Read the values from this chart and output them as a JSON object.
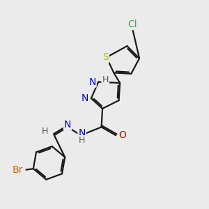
{
  "background_color": "#ebebeb",
  "bond_color": "#1a1a1a",
  "atoms": {
    "Cl": {
      "color": "#3cb03c",
      "fontsize": 10
    },
    "S": {
      "color": "#b8b800",
      "fontsize": 10
    },
    "N": {
      "color": "#0000cc",
      "fontsize": 10
    },
    "O": {
      "color": "#cc0000",
      "fontsize": 10
    },
    "Br": {
      "color": "#cc6600",
      "fontsize": 10
    },
    "H": {
      "color": "#555555",
      "fontsize": 9
    },
    "C": {
      "color": "#1a1a1a",
      "fontsize": 10
    }
  },
  "fig_width": 3.0,
  "fig_height": 3.0,
  "dpi": 100,
  "lw": 1.6,
  "double_off": 0.07
}
